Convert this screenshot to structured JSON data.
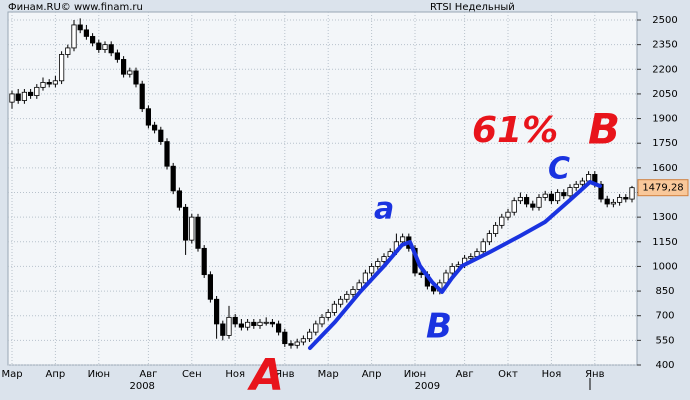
{
  "header": {
    "left": "Финам.RU©  www.finam.ru",
    "right": "RTSI Недельный"
  },
  "chart_data": {
    "type": "candlestick",
    "categories": [
      "Мар",
      null,
      null,
      null,
      null,
      null,
      null,
      "Апр",
      null,
      null,
      null,
      null,
      null,
      null,
      "Июн",
      null,
      null,
      null,
      null,
      null,
      null,
      null,
      "Авг",
      null,
      null,
      null,
      null,
      null,
      null,
      "Сен",
      null,
      null,
      null,
      null,
      null,
      null,
      "Ноя",
      null,
      null,
      null,
      null,
      null,
      null,
      null,
      "Янв",
      null,
      null,
      null,
      null,
      null,
      null,
      "Мар",
      null,
      null,
      null,
      null,
      null,
      null,
      "Апр",
      null,
      null,
      null,
      null,
      null,
      null,
      "Июн",
      null,
      null,
      null,
      null,
      null,
      null,
      null,
      "Авг",
      null,
      null,
      null,
      null,
      null,
      null,
      "Окт",
      null,
      null,
      null,
      null,
      null,
      null,
      "Ноя",
      null,
      null,
      null,
      null,
      null,
      null,
      "Янв",
      null,
      null,
      null,
      null,
      null,
      null
    ],
    "years": [
      null,
      null,
      null,
      null,
      null,
      null,
      null,
      null,
      null,
      null,
      null,
      null,
      null,
      null,
      null,
      null,
      null,
      null,
      null,
      null,
      null,
      "2008",
      null,
      null,
      null,
      null,
      null,
      null,
      null,
      null,
      null,
      null,
      null,
      null,
      null,
      null,
      null,
      null,
      null,
      null,
      null,
      null,
      null,
      null,
      null,
      null,
      null,
      null,
      null,
      null,
      null,
      null,
      null,
      null,
      null,
      null,
      null,
      null,
      null,
      null,
      null,
      null,
      null,
      null,
      null,
      null,
      null,
      "2009",
      null,
      null,
      null,
      null,
      null,
      null,
      null,
      null,
      null,
      null,
      null,
      null,
      null,
      null,
      null,
      null,
      null,
      null,
      null,
      null,
      null,
      null,
      null,
      null,
      null,
      null,
      null,
      null,
      null,
      null,
      null
    ],
    "ohlc": [
      [
        2000,
        2070,
        1960,
        2050
      ],
      [
        2050,
        2080,
        1990,
        2010
      ],
      [
        2010,
        2080,
        1990,
        2060
      ],
      [
        2060,
        2080,
        2020,
        2040
      ],
      [
        2040,
        2110,
        2020,
        2090
      ],
      [
        2090,
        2150,
        2070,
        2120
      ],
      [
        2120,
        2140,
        2090,
        2110
      ],
      [
        2110,
        2160,
        2090,
        2130
      ],
      [
        2130,
        2310,
        2110,
        2290
      ],
      [
        2290,
        2350,
        2270,
        2330
      ],
      [
        2330,
        2500,
        2310,
        2470
      ],
      [
        2470,
        2510,
        2420,
        2440
      ],
      [
        2440,
        2470,
        2380,
        2400
      ],
      [
        2400,
        2420,
        2340,
        2360
      ],
      [
        2360,
        2380,
        2300,
        2320
      ],
      [
        2320,
        2370,
        2300,
        2350
      ],
      [
        2350,
        2370,
        2280,
        2300
      ],
      [
        2300,
        2320,
        2240,
        2260
      ],
      [
        2260,
        2280,
        2150,
        2170
      ],
      [
        2170,
        2210,
        2150,
        2190
      ],
      [
        2190,
        2210,
        2090,
        2110
      ],
      [
        2110,
        2130,
        1940,
        1960
      ],
      [
        1960,
        1980,
        1840,
        1860
      ],
      [
        1860,
        1880,
        1810,
        1830
      ],
      [
        1830,
        1850,
        1740,
        1760
      ],
      [
        1760,
        1780,
        1590,
        1610
      ],
      [
        1610,
        1630,
        1440,
        1460
      ],
      [
        1460,
        1480,
        1340,
        1360
      ],
      [
        1360,
        1380,
        1070,
        1160
      ],
      [
        1160,
        1320,
        1140,
        1300
      ],
      [
        1300,
        1320,
        1090,
        1110
      ],
      [
        1110,
        1130,
        930,
        950
      ],
      [
        950,
        970,
        780,
        800
      ],
      [
        800,
        820,
        560,
        650
      ],
      [
        650,
        670,
        550,
        580
      ],
      [
        580,
        760,
        560,
        690
      ],
      [
        690,
        710,
        630,
        650
      ],
      [
        650,
        680,
        610,
        630
      ],
      [
        630,
        680,
        610,
        660
      ],
      [
        660,
        680,
        620,
        640
      ],
      [
        640,
        680,
        620,
        660
      ],
      [
        660,
        690,
        640,
        660
      ],
      [
        660,
        680,
        630,
        650
      ],
      [
        650,
        670,
        580,
        600
      ],
      [
        600,
        620,
        510,
        530
      ],
      [
        530,
        550,
        500,
        520
      ],
      [
        520,
        560,
        500,
        540
      ],
      [
        540,
        580,
        520,
        560
      ],
      [
        560,
        620,
        540,
        600
      ],
      [
        600,
        670,
        580,
        650
      ],
      [
        650,
        710,
        630,
        690
      ],
      [
        690,
        740,
        670,
        720
      ],
      [
        720,
        790,
        700,
        770
      ],
      [
        770,
        820,
        750,
        800
      ],
      [
        800,
        850,
        780,
        830
      ],
      [
        830,
        880,
        810,
        860
      ],
      [
        860,
        920,
        840,
        900
      ],
      [
        900,
        980,
        880,
        960
      ],
      [
        960,
        1020,
        940,
        1000
      ],
      [
        1000,
        1050,
        980,
        1030
      ],
      [
        1030,
        1080,
        1010,
        1060
      ],
      [
        1060,
        1110,
        1040,
        1090
      ],
      [
        1090,
        1200,
        1070,
        1150
      ],
      [
        1150,
        1200,
        1130,
        1180
      ],
      [
        1180,
        1200,
        1090,
        1110
      ],
      [
        1110,
        1130,
        940,
        960
      ],
      [
        960,
        980,
        930,
        950
      ],
      [
        950,
        970,
        860,
        880
      ],
      [
        880,
        900,
        830,
        850
      ],
      [
        850,
        920,
        830,
        900
      ],
      [
        900,
        980,
        880,
        960
      ],
      [
        960,
        1020,
        940,
        1000
      ],
      [
        1000,
        1030,
        980,
        1010
      ],
      [
        1010,
        1070,
        990,
        1050
      ],
      [
        1050,
        1080,
        1030,
        1060
      ],
      [
        1060,
        1110,
        1040,
        1090
      ],
      [
        1090,
        1170,
        1070,
        1150
      ],
      [
        1150,
        1220,
        1130,
        1200
      ],
      [
        1200,
        1270,
        1180,
        1250
      ],
      [
        1250,
        1320,
        1230,
        1300
      ],
      [
        1300,
        1350,
        1280,
        1330
      ],
      [
        1330,
        1420,
        1310,
        1400
      ],
      [
        1400,
        1450,
        1380,
        1420
      ],
      [
        1420,
        1440,
        1360,
        1380
      ],
      [
        1380,
        1400,
        1340,
        1360
      ],
      [
        1360,
        1440,
        1340,
        1420
      ],
      [
        1420,
        1460,
        1400,
        1440
      ],
      [
        1440,
        1460,
        1380,
        1400
      ],
      [
        1400,
        1470,
        1380,
        1450
      ],
      [
        1450,
        1470,
        1410,
        1430
      ],
      [
        1430,
        1500,
        1410,
        1480
      ],
      [
        1480,
        1520,
        1460,
        1500
      ],
      [
        1500,
        1540,
        1480,
        1520
      ],
      [
        1520,
        1580,
        1500,
        1560
      ],
      [
        1560,
        1580,
        1480,
        1500
      ],
      [
        1500,
        1520,
        1390,
        1410
      ],
      [
        1410,
        1430,
        1360,
        1380
      ],
      [
        1380,
        1410,
        1360,
        1390
      ],
      [
        1390,
        1440,
        1370,
        1420
      ],
      [
        1420,
        1440,
        1390,
        1410
      ],
      [
        1410,
        1490,
        1390,
        1479.28
      ]
    ],
    "last_price": {
      "value": 1479.28,
      "label": "1479,28"
    },
    "ylim": [
      400,
      2500
    ],
    "yticks": [
      400,
      550,
      700,
      850,
      1000,
      1150,
      1300,
      1450,
      1600,
      1750,
      1900,
      2050,
      2200,
      2350,
      2500
    ],
    "grid": true,
    "annotations": [
      "A",
      "a",
      "B",
      "C",
      "61%",
      "B"
    ]
  }
}
